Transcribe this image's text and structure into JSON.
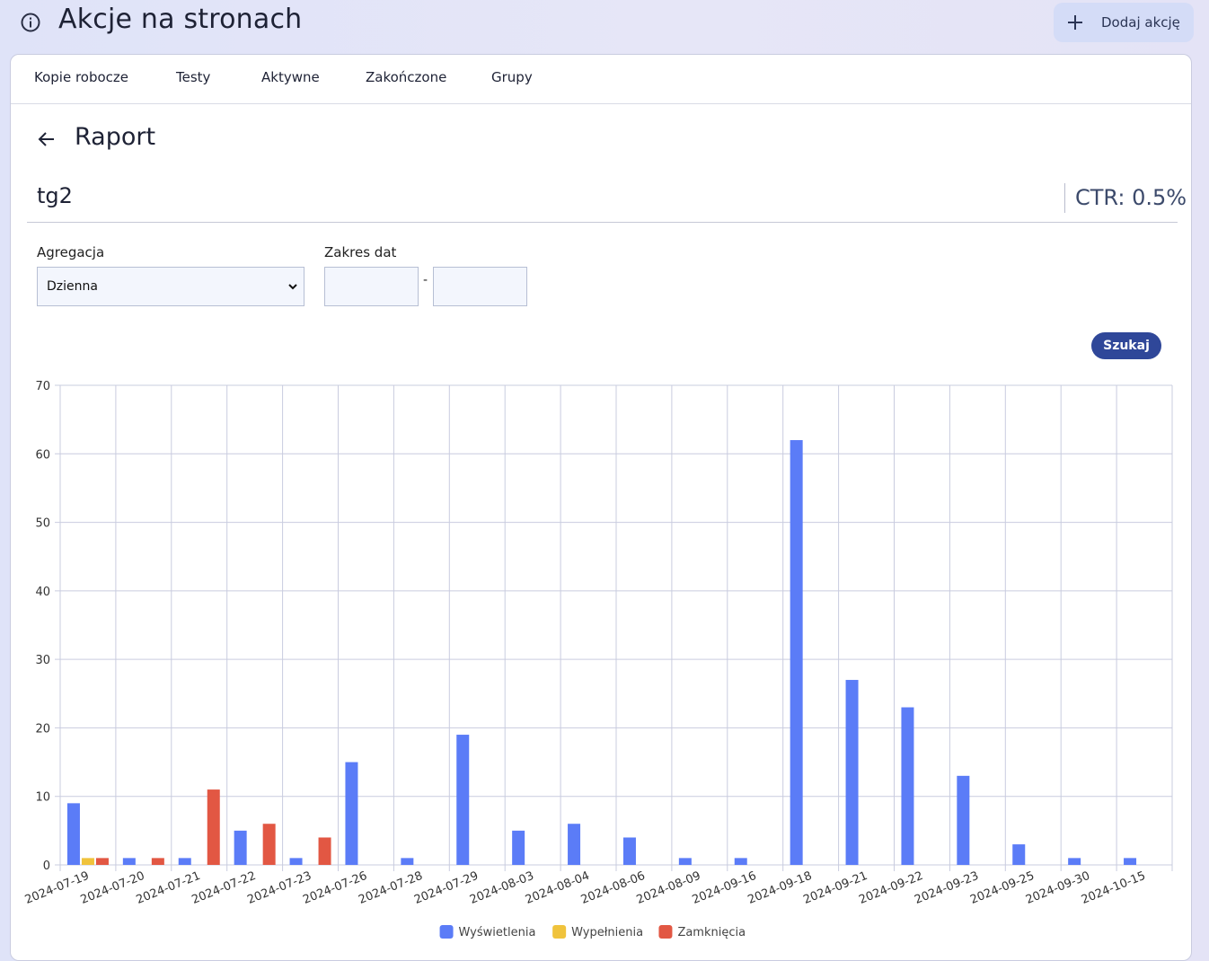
{
  "header": {
    "title": "Akcje na stronach",
    "add_button_label": "Dodaj akcję",
    "icons": {
      "info": "info-circle-icon",
      "add": "plus-icon"
    }
  },
  "tabs": [
    {
      "label": "Kopie robocze"
    },
    {
      "label": "Testy"
    },
    {
      "label": "Aktywne"
    },
    {
      "label": "Zakończone"
    },
    {
      "label": "Grupy"
    }
  ],
  "report": {
    "title": "Raport",
    "action_name": "tg2",
    "ctr": "CTR: 0.5%"
  },
  "filters": {
    "aggregation_label": "Agregacja",
    "aggregation_value": "Dzienna",
    "date_range_label": "Zakres dat",
    "date_from": "",
    "date_to": "",
    "date_separator": "-",
    "search_label": "Szukaj"
  },
  "colors": {
    "accent": "#2f4799",
    "series_views": "#5b7cf7",
    "series_fills": "#f0c33c",
    "series_closes": "#e25743"
  },
  "chart_data": {
    "type": "bar",
    "categories": [
      "2024-07-19",
      "2024-07-20",
      "2024-07-21",
      "2024-07-22",
      "2024-07-23",
      "2024-07-26",
      "2024-07-28",
      "2024-07-29",
      "2024-08-03",
      "2024-08-04",
      "2024-08-06",
      "2024-08-09",
      "2024-09-16",
      "2024-09-18",
      "2024-09-21",
      "2024-09-22",
      "2024-09-23",
      "2024-09-25",
      "2024-09-30",
      "2024-10-15"
    ],
    "series": [
      {
        "name": "Wyświetlenia",
        "color": "#5b7cf7",
        "values": [
          9,
          1,
          1,
          5,
          1,
          15,
          1,
          19,
          5,
          6,
          4,
          1,
          1,
          62,
          27,
          23,
          13,
          3,
          1,
          1
        ]
      },
      {
        "name": "Wypełnienia",
        "color": "#f0c33c",
        "values": [
          1,
          0,
          0,
          0,
          0,
          0,
          0,
          0,
          0,
          0,
          0,
          0,
          0,
          0,
          0,
          0,
          0,
          0,
          0,
          0
        ]
      },
      {
        "name": "Zamknięcia",
        "color": "#e25743",
        "values": [
          1,
          1,
          11,
          6,
          4,
          0,
          0,
          0,
          0,
          0,
          0,
          0,
          0,
          0,
          0,
          0,
          0,
          0,
          0,
          0
        ]
      }
    ],
    "yticks": [
      0,
      10,
      20,
      30,
      40,
      50,
      60,
      70
    ],
    "ylim": [
      0,
      70
    ],
    "grid": true,
    "legend": "bottom"
  }
}
